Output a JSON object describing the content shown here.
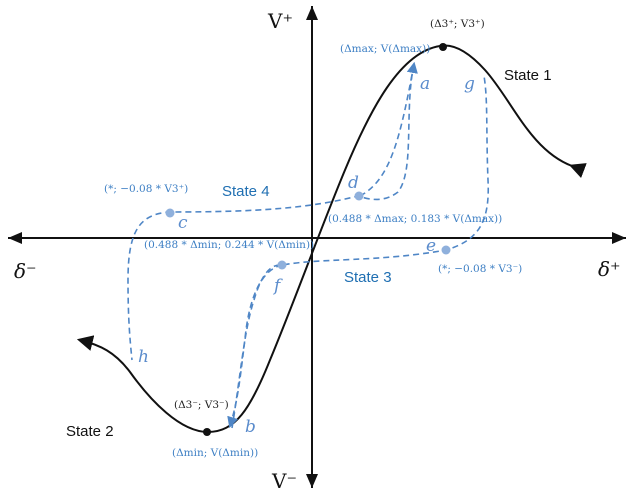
{
  "axes": {
    "y_top": "V⁺",
    "y_bottom": "V⁻",
    "x_left": "δ⁻",
    "x_right": "δ⁺"
  },
  "states": {
    "s1": "State 1",
    "s2": "State 2",
    "s3": "State 3",
    "s4": "State 4"
  },
  "points": {
    "a": "a",
    "b": "b",
    "c": "c",
    "d": "d",
    "e": "e",
    "f": "f",
    "g": "g",
    "h": "h"
  },
  "annotations": {
    "peak_pos": "(Δ3⁺; V3⁺)",
    "peak_neg": "(Δ3⁻; V3⁻)",
    "max": "(Δmax; V(Δmax))",
    "min": "(Δmin; V(Δmin))",
    "c_coord": "(*; −0.08 * V3⁺)",
    "d_coord": "(0.488 * Δmax; 0.183 * V(Δmax))",
    "f_coord": "(0.488 * Δmin; 0.244 * V(Δmin))",
    "e_coord": "(*; −0.08 * V3⁻)"
  },
  "colors": {
    "backbone": "#111111",
    "loop": "#4f86c6",
    "state_label": "#1f6fb2"
  }
}
